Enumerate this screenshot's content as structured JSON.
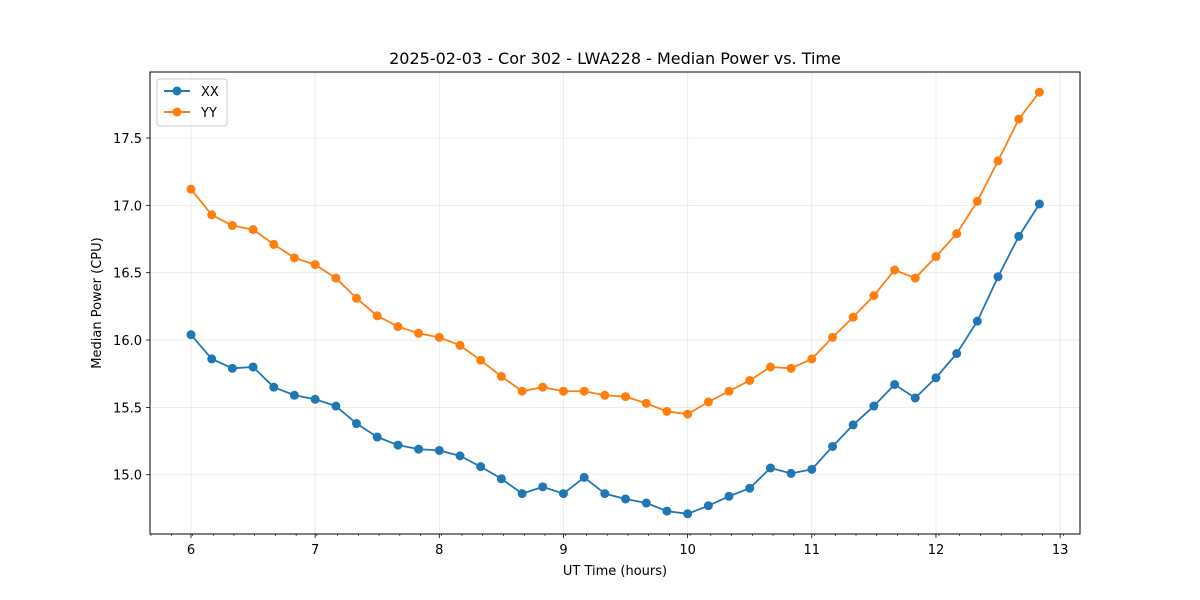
{
  "chart_data": {
    "type": "line",
    "title": "2025-02-03 - Cor 302 - LWA228 - Median Power vs. Time",
    "xlabel": "UT Time (hours)",
    "ylabel": "Median Power (CPU)",
    "xlim": [
      5.67,
      13.16
    ],
    "ylim": [
      14.56,
      17.99
    ],
    "xticks": [
      6,
      7,
      8,
      9,
      10,
      11,
      12,
      13
    ],
    "yticks": [
      15.0,
      15.5,
      16.0,
      16.5,
      17.0,
      17.5
    ],
    "xtick_labels": [
      "6",
      "7",
      "8",
      "9",
      "10",
      "11",
      "12",
      "13"
    ],
    "ytick_labels": [
      "15.0",
      "15.5",
      "16.0",
      "16.5",
      "17.0",
      "17.5"
    ],
    "x_minor_step": 0.167,
    "grid": true,
    "legend_position": "upper-left",
    "x": [
      6.0,
      6.167,
      6.333,
      6.5,
      6.667,
      6.833,
      7.0,
      7.167,
      7.333,
      7.5,
      7.667,
      7.833,
      8.0,
      8.167,
      8.333,
      8.5,
      8.667,
      8.833,
      9.0,
      9.167,
      9.333,
      9.5,
      9.667,
      9.833,
      10.0,
      10.167,
      10.333,
      10.5,
      10.667,
      10.833,
      11.0,
      11.167,
      11.333,
      11.5,
      11.667,
      11.833,
      12.0,
      12.167,
      12.333,
      12.5,
      12.667,
      12.833
    ],
    "series": [
      {
        "name": "XX",
        "color": "#1f77b4",
        "values": [
          16.04,
          15.86,
          15.79,
          15.8,
          15.65,
          15.59,
          15.56,
          15.51,
          15.38,
          15.28,
          15.22,
          15.19,
          15.18,
          15.14,
          15.06,
          14.97,
          14.86,
          14.91,
          14.86,
          14.98,
          14.86,
          14.82,
          14.79,
          14.73,
          14.71,
          14.77,
          14.84,
          14.9,
          15.05,
          15.01,
          15.04,
          15.21,
          15.37,
          15.51,
          15.67,
          15.57,
          15.72,
          15.9,
          16.14,
          16.47,
          16.77,
          17.01
        ]
      },
      {
        "name": "YY",
        "color": "#ff7f0e",
        "values": [
          17.12,
          16.93,
          16.85,
          16.82,
          16.71,
          16.61,
          16.56,
          16.46,
          16.31,
          16.18,
          16.1,
          16.05,
          16.02,
          15.96,
          15.85,
          15.73,
          15.62,
          15.65,
          15.62,
          15.62,
          15.59,
          15.58,
          15.53,
          15.47,
          15.45,
          15.54,
          15.62,
          15.7,
          15.8,
          15.79,
          15.86,
          16.02,
          16.17,
          16.33,
          16.52,
          16.46,
          16.62,
          16.79,
          17.03,
          17.33,
          17.64,
          17.84
        ]
      }
    ]
  }
}
